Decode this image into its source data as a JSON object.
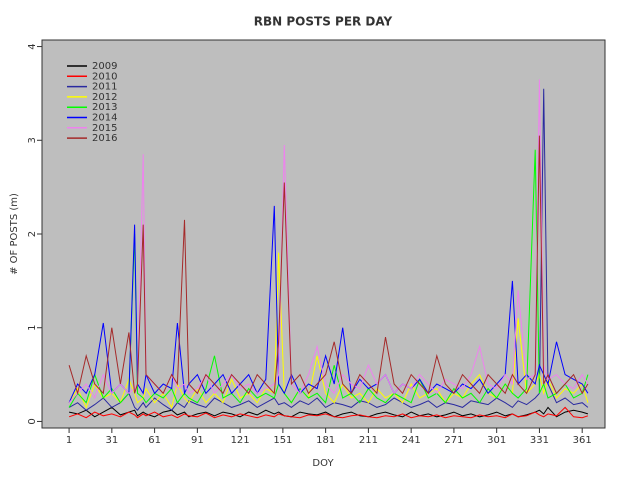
{
  "chart_data": {
    "type": "line",
    "title": "RBN POSTS PER DAY",
    "xlabel": "DOY",
    "ylabel": "# OF POSTS (m)",
    "x": [
      1,
      7,
      13,
      19,
      25,
      31,
      37,
      43,
      47,
      49,
      53,
      55,
      61,
      67,
      73,
      77,
      82,
      85,
      91,
      97,
      103,
      109,
      115,
      121,
      127,
      133,
      139,
      145,
      148,
      152,
      157,
      163,
      169,
      175,
      181,
      187,
      193,
      199,
      205,
      211,
      217,
      223,
      229,
      235,
      241,
      247,
      253,
      259,
      265,
      271,
      277,
      283,
      289,
      295,
      301,
      307,
      312,
      316,
      322,
      328,
      331,
      334,
      337,
      343,
      349,
      355,
      361,
      365
    ],
    "xlim": [
      -18,
      377
    ],
    "xticks": [
      1,
      31,
      61,
      91,
      121,
      151,
      181,
      211,
      241,
      271,
      301,
      331,
      361
    ],
    "ylim": [
      -0.07,
      4.07
    ],
    "yticks": [
      0,
      1,
      2,
      3,
      4
    ],
    "legend": "top-left",
    "background": "#bebebe",
    "series": [
      {
        "name": "2009",
        "color": "#000000",
        "values": [
          0.1,
          0.08,
          0.12,
          0.05,
          0.1,
          0.15,
          0.07,
          0.1,
          0.12,
          0.06,
          0.1,
          0.08,
          0.05,
          0.1,
          0.12,
          0.07,
          0.1,
          0.05,
          0.08,
          0.1,
          0.06,
          0.1,
          0.08,
          0.05,
          0.1,
          0.07,
          0.12,
          0.08,
          0.1,
          0.06,
          0.05,
          0.1,
          0.08,
          0.07,
          0.1,
          0.05,
          0.08,
          0.1,
          0.06,
          0.05,
          0.08,
          0.1,
          0.07,
          0.05,
          0.1,
          0.06,
          0.08,
          0.05,
          0.07,
          0.1,
          0.06,
          0.08,
          0.05,
          0.07,
          0.1,
          0.06,
          0.08,
          0.05,
          0.07,
          0.1,
          0.12,
          0.08,
          0.15,
          0.05,
          0.1,
          0.12,
          0.1,
          0.08
        ]
      },
      {
        "name": "2010",
        "color": "#ff0000",
        "values": [
          0.05,
          0.08,
          0.04,
          0.1,
          0.06,
          0.08,
          0.05,
          0.1,
          0.07,
          0.04,
          0.08,
          0.06,
          0.1,
          0.05,
          0.07,
          0.04,
          0.08,
          0.06,
          0.05,
          0.09,
          0.04,
          0.07,
          0.05,
          0.08,
          0.06,
          0.04,
          0.07,
          0.05,
          0.08,
          0.06,
          0.05,
          0.04,
          0.07,
          0.06,
          0.08,
          0.05,
          0.04,
          0.06,
          0.07,
          0.05,
          0.04,
          0.06,
          0.05,
          0.08,
          0.04,
          0.06,
          0.05,
          0.07,
          0.04,
          0.06,
          0.05,
          0.04,
          0.07,
          0.05,
          0.06,
          0.04,
          0.08,
          0.05,
          0.06,
          0.1,
          0.07,
          0.05,
          0.08,
          0.06,
          0.15,
          0.05,
          0.04,
          0.06
        ]
      },
      {
        "name": "2011",
        "color": "#2a2aa0",
        "values": [
          0.15,
          0.2,
          0.12,
          0.18,
          0.25,
          0.15,
          0.2,
          0.3,
          0.15,
          0.12,
          0.2,
          0.15,
          0.25,
          0.18,
          0.12,
          0.2,
          0.15,
          0.22,
          0.18,
          0.15,
          0.25,
          0.2,
          0.15,
          0.18,
          0.22,
          0.15,
          0.2,
          0.25,
          0.18,
          0.2,
          0.15,
          0.22,
          0.18,
          0.25,
          0.15,
          0.2,
          0.18,
          0.15,
          0.22,
          0.2,
          0.15,
          0.18,
          0.25,
          0.2,
          0.15,
          0.18,
          0.22,
          0.15,
          0.2,
          0.18,
          0.15,
          0.22,
          0.2,
          0.18,
          0.25,
          0.2,
          0.15,
          0.22,
          0.18,
          0.25,
          0.3,
          3.55,
          0.4,
          0.2,
          0.25,
          0.18,
          0.2,
          0.15
        ]
      },
      {
        "name": "2012",
        "color": "#ffff00",
        "values": [
          0.2,
          0.35,
          0.15,
          0.4,
          0.25,
          0.3,
          0.2,
          0.45,
          0.3,
          0.2,
          0.25,
          0.35,
          0.2,
          0.3,
          0.15,
          0.4,
          0.25,
          0.2,
          0.35,
          0.2,
          0.3,
          0.2,
          0.45,
          0.25,
          0.3,
          0.2,
          0.35,
          0.3,
          1.8,
          0.3,
          0.2,
          0.35,
          0.25,
          0.7,
          0.3,
          0.2,
          0.4,
          0.25,
          0.3,
          0.2,
          0.35,
          0.25,
          0.3,
          0.2,
          0.4,
          0.25,
          0.3,
          0.35,
          0.2,
          0.3,
          0.25,
          0.4,
          0.5,
          0.3,
          0.25,
          0.4,
          0.3,
          1.1,
          0.3,
          0.4,
          0.5,
          0.3,
          0.45,
          0.25,
          0.35,
          0.3,
          0.4,
          0.2
        ]
      },
      {
        "name": "2013",
        "color": "#00ff00",
        "values": [
          0.15,
          0.3,
          0.2,
          0.5,
          0.25,
          0.35,
          0.2,
          0.3,
          2.0,
          0.3,
          0.25,
          0.2,
          0.3,
          0.25,
          0.35,
          0.2,
          0.3,
          0.25,
          0.2,
          0.35,
          0.7,
          0.25,
          0.3,
          0.2,
          0.35,
          0.25,
          0.3,
          0.25,
          0.4,
          0.3,
          0.2,
          0.35,
          0.25,
          0.3,
          0.2,
          0.6,
          0.25,
          0.3,
          0.2,
          0.35,
          0.25,
          0.2,
          0.3,
          0.25,
          0.2,
          0.45,
          0.25,
          0.3,
          0.2,
          0.35,
          0.25,
          0.3,
          0.2,
          0.35,
          0.25,
          0.4,
          0.3,
          0.25,
          0.35,
          2.9,
          0.3,
          0.4,
          0.25,
          0.3,
          0.4,
          0.25,
          0.3,
          0.5
        ]
      },
      {
        "name": "2014",
        "color": "#0000ff",
        "values": [
          0.2,
          0.4,
          0.3,
          0.5,
          1.05,
          0.3,
          0.4,
          0.3,
          2.1,
          0.4,
          0.3,
          0.5,
          0.3,
          0.4,
          0.35,
          1.05,
          0.3,
          0.4,
          0.5,
          0.3,
          0.4,
          0.5,
          0.3,
          0.4,
          0.5,
          0.3,
          0.45,
          2.3,
          0.4,
          0.3,
          0.5,
          0.3,
          0.4,
          0.35,
          0.7,
          0.4,
          1.0,
          0.3,
          0.45,
          0.35,
          0.4,
          0.5,
          0.3,
          0.4,
          0.35,
          0.45,
          0.3,
          0.4,
          0.35,
          0.3,
          0.4,
          0.35,
          0.45,
          0.3,
          0.4,
          0.5,
          1.5,
          0.4,
          0.5,
          0.4,
          0.6,
          0.5,
          0.4,
          0.85,
          0.5,
          0.45,
          0.4,
          0.3
        ]
      },
      {
        "name": "2015",
        "color": "#ee82ee",
        "values": [
          0.2,
          0.3,
          0.4,
          0.25,
          0.5,
          0.3,
          0.4,
          0.3,
          0.35,
          0.4,
          2.85,
          0.5,
          0.4,
          0.3,
          0.5,
          0.35,
          0.4,
          0.3,
          0.35,
          0.5,
          0.3,
          0.4,
          0.5,
          0.35,
          0.4,
          0.3,
          0.35,
          0.4,
          0.5,
          2.95,
          0.4,
          0.3,
          0.5,
          0.8,
          0.4,
          0.3,
          0.5,
          0.4,
          0.35,
          0.6,
          0.4,
          0.5,
          0.3,
          0.4,
          0.35,
          0.5,
          0.4,
          0.3,
          0.45,
          0.4,
          0.35,
          0.5,
          0.8,
          0.4,
          0.35,
          0.5,
          0.4,
          1.4,
          0.45,
          0.5,
          3.65,
          0.6,
          0.45,
          0.5,
          0.4,
          0.35,
          0.5,
          0.4
        ]
      },
      {
        "name": "2016",
        "color": "#a52a2a",
        "values": [
          0.6,
          0.3,
          0.7,
          0.4,
          0.3,
          1.0,
          0.4,
          0.95,
          0.3,
          0.4,
          2.1,
          0.5,
          0.4,
          0.3,
          0.5,
          0.4,
          2.15,
          0.4,
          0.3,
          0.5,
          0.4,
          0.3,
          0.5,
          0.4,
          0.3,
          0.5,
          0.4,
          0.3,
          0.85,
          2.55,
          0.4,
          0.5,
          0.3,
          0.4,
          0.5,
          0.85,
          0.4,
          0.3,
          0.5,
          0.4,
          0.3,
          0.9,
          0.4,
          0.3,
          0.5,
          0.4,
          0.3,
          0.7,
          0.4,
          0.3,
          0.5,
          0.4,
          0.3,
          0.5,
          0.4,
          0.3,
          0.5,
          0.4,
          0.3,
          0.5,
          3.05,
          0.4,
          0.5,
          0.3,
          0.4,
          0.5,
          0.3,
          0.4
        ]
      }
    ]
  }
}
